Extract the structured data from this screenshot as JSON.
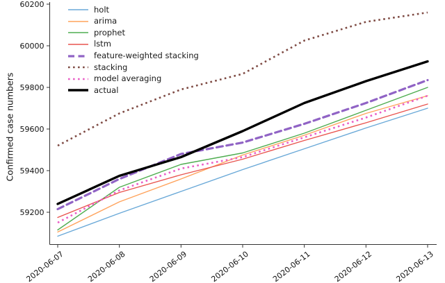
{
  "chart_data": {
    "type": "line",
    "title": "",
    "xlabel": "",
    "ylabel": "Confirmed case numbers",
    "x": [
      "2020-06-07",
      "2020-06-08",
      "2020-06-09",
      "2020-06-10",
      "2020-06-11",
      "2020-06-12",
      "2020-06-13"
    ],
    "yticks": [
      59200,
      59400,
      59600,
      59800,
      60000,
      60200
    ],
    "ylim": [
      59045,
      60213
    ],
    "grid": false,
    "legend_position": "upper-left",
    "legend_frame": false,
    "series": [
      {
        "name": "holt",
        "color": "#6aa9d8",
        "line_style": "solid",
        "line_width": 1.4,
        "values": [
          59085,
          59195,
          59300,
          59405,
          59505,
          59605,
          59700
        ]
      },
      {
        "name": "arima",
        "color": "#ffa35c",
        "line_style": "solid",
        "line_width": 1.4,
        "values": [
          59105,
          59250,
          59360,
          59475,
          59570,
          59675,
          59760
        ]
      },
      {
        "name": "prophet",
        "color": "#4fad50",
        "line_style": "solid",
        "line_width": 1.4,
        "values": [
          59115,
          59320,
          59430,
          59485,
          59580,
          59690,
          59800
        ]
      },
      {
        "name": "lstm",
        "color": "#e9544f",
        "line_style": "solid",
        "line_width": 1.4,
        "values": [
          59175,
          59295,
          59380,
          59455,
          59545,
          59630,
          59720
        ]
      },
      {
        "name": "feature-weighted stacking",
        "color": "#9063c5",
        "line_style": "dashed",
        "line_width": 3.2,
        "values": [
          59215,
          59360,
          59480,
          59535,
          59625,
          59725,
          59835
        ]
      },
      {
        "name": "stacking",
        "color": "#7e4a43",
        "line_style": "dotted",
        "line_width": 2.6,
        "values": [
          59520,
          59675,
          59790,
          59865,
          60025,
          60115,
          60160
        ]
      },
      {
        "name": "model averaging",
        "color": "#ea5ec6",
        "line_style": "dotted",
        "line_width": 2.6,
        "values": [
          59150,
          59305,
          59410,
          59465,
          59560,
          59655,
          59760
        ]
      },
      {
        "name": "actual",
        "color": "#000000",
        "line_style": "solid",
        "line_width": 3.4,
        "values": [
          59240,
          59375,
          59465,
          59590,
          59725,
          59830,
          59925
        ]
      }
    ]
  }
}
